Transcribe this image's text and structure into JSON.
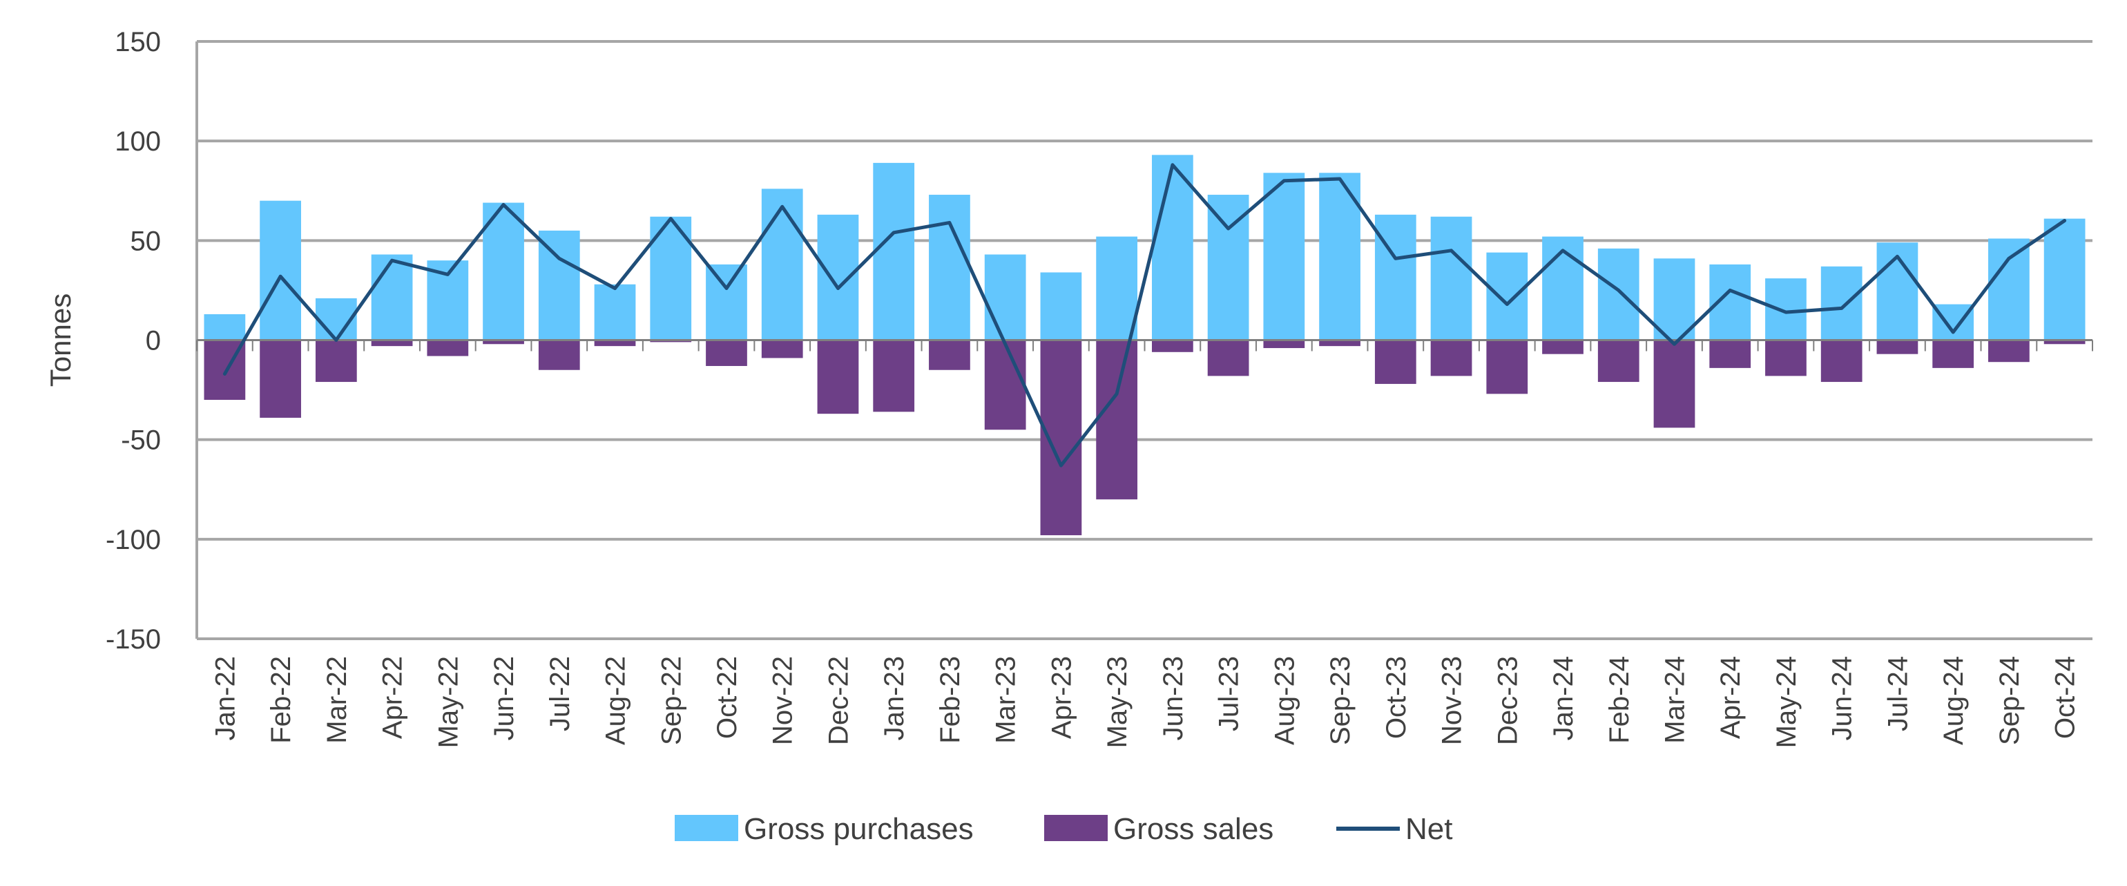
{
  "chart_data": {
    "type": "bar",
    "categories": [
      "Jan-22",
      "Feb-22",
      "Mar-22",
      "Apr-22",
      "May-22",
      "Jun-22",
      "Jul-22",
      "Aug-22",
      "Sep-22",
      "Oct-22",
      "Nov-22",
      "Dec-22",
      "Jan-23",
      "Feb-23",
      "Mar-23",
      "Apr-23",
      "May-23",
      "Jun-23",
      "Jul-23",
      "Aug-23",
      "Sep-23",
      "Oct-23",
      "Nov-23",
      "Dec-23",
      "Jan-24",
      "Feb-24",
      "Mar-24",
      "Apr-24",
      "May-24",
      "Jun-24",
      "Jul-24",
      "Aug-24",
      "Sep-24",
      "Oct-24"
    ],
    "series": [
      {
        "name": "Gross purchases",
        "type": "bar",
        "color": "#63c6fd",
        "values": [
          13,
          70,
          21,
          43,
          40,
          69,
          55,
          28,
          62,
          38,
          76,
          63,
          89,
          73,
          43,
          34,
          52,
          93,
          73,
          84,
          84,
          63,
          62,
          44,
          52,
          46,
          41,
          38,
          31,
          37,
          49,
          18,
          51,
          61
        ]
      },
      {
        "name": "Gross sales",
        "type": "bar",
        "color": "#6d3f87",
        "values": [
          -30,
          -39,
          -21,
          -3,
          -8,
          -2,
          -15,
          -3,
          -1,
          -13,
          -9,
          -37,
          -36,
          -15,
          -45,
          -98,
          -80,
          -6,
          -18,
          -4,
          -3,
          -22,
          -18,
          -27,
          -7,
          -21,
          -44,
          -14,
          -18,
          -21,
          -7,
          -14,
          -11,
          -2
        ]
      },
      {
        "name": "Net",
        "type": "line",
        "color": "#1f4e79",
        "values": [
          -17,
          32,
          0,
          40,
          33,
          68,
          41,
          26,
          61,
          26,
          67,
          26,
          54,
          59,
          -2,
          -63,
          -27,
          88,
          56,
          80,
          81,
          41,
          45,
          18,
          45,
          25,
          -2,
          25,
          14,
          16,
          42,
          4,
          41,
          60
        ]
      }
    ],
    "ylabel": "Tonnes",
    "ylim": [
      -150,
      150
    ],
    "yticks": [
      150,
      100,
      50,
      0,
      -50,
      -100,
      -150
    ],
    "grid": true,
    "legend_position": "bottom"
  }
}
